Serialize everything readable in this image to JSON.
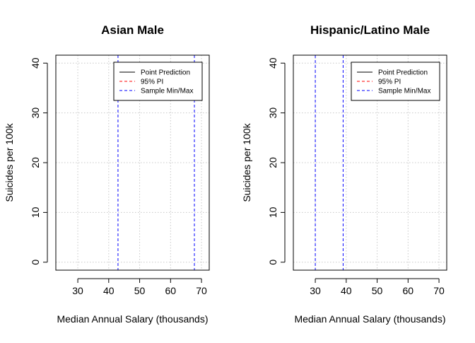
{
  "chart_data": [
    {
      "type": "line",
      "title": "Asian Male",
      "xlabel": "Median Annual Salary (thousands)",
      "ylabel": "Suicides per 100k",
      "xlim": [
        22.9,
        72.5
      ],
      "ylim": [
        -1.6,
        41.6
      ],
      "xticks": [
        30,
        40,
        50,
        60,
        70
      ],
      "yticks": [
        0,
        10,
        20,
        30,
        40
      ],
      "grid": true,
      "legend_position": "top-right",
      "legend": [
        {
          "label": "Point Prediction",
          "color": "#000000",
          "style": "solid"
        },
        {
          "label": "95% PI",
          "color": "#ff0000",
          "style": "dashed"
        },
        {
          "label": "Sample Min/Max",
          "color": "#0000ff",
          "style": "dashed"
        }
      ],
      "sample_min": 43,
      "sample_max": 67.7
    },
    {
      "type": "line",
      "title": "Hispanic/Latino Male",
      "xlabel": "Median Annual Salary (thousands)",
      "ylabel": "Suicides per 100k",
      "xlim": [
        22.9,
        72.5
      ],
      "ylim": [
        -1.6,
        41.6
      ],
      "xticks": [
        30,
        40,
        50,
        60,
        70
      ],
      "yticks": [
        0,
        10,
        20,
        30,
        40
      ],
      "grid": true,
      "legend_position": "top-right",
      "legend": [
        {
          "label": "Point Prediction",
          "color": "#000000",
          "style": "solid"
        },
        {
          "label": "95% PI",
          "color": "#ff0000",
          "style": "dashed"
        },
        {
          "label": "Sample Min/Max",
          "color": "#0000ff",
          "style": "dashed"
        }
      ],
      "sample_min": 30,
      "sample_max": 39
    }
  ]
}
